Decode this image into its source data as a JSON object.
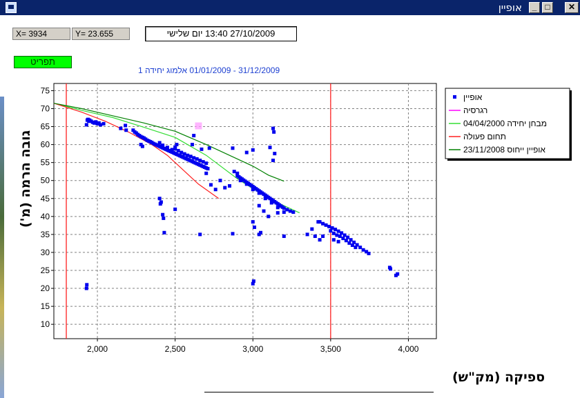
{
  "window": {
    "title": "אופיין",
    "minimize": "_",
    "maximize": "□",
    "close": "✕"
  },
  "readout": {
    "x_text": "X= 3934",
    "y_text": "Y= 23.655"
  },
  "datetime": "27/10/2009 13:40 יום שלישי",
  "menu_button": "תפריט",
  "subtitle": "31/12/2009 - 01/01/2009  אלמוג יחידה 1",
  "icons": {
    "app": "app-icon"
  },
  "chart_data": {
    "type": "scatter",
    "xlabel": "ספיקה (מק\"ש)",
    "ylabel": "גובה הרמה (מ')",
    "xlim": [
      1720,
      4180
    ],
    "ylim": [
      6,
      77
    ],
    "xticks": [
      2000,
      2500,
      3000,
      3500,
      4000
    ],
    "xtick_labels": [
      "2,000",
      "2,500",
      "3,000",
      "3,500",
      "4,000"
    ],
    "yticks": [
      10,
      15,
      20,
      25,
      30,
      35,
      40,
      45,
      50,
      55,
      60,
      65,
      70,
      75
    ],
    "grid": true,
    "legend_position": "right",
    "vertical_lines": [
      1800,
      3500
    ],
    "series": [
      {
        "name": "אופיין",
        "kind": "scatter",
        "color": "#0000ee",
        "points": [
          [
            1930,
            65.5
          ],
          [
            1935,
            66.8
          ],
          [
            1940,
            67
          ],
          [
            1945,
            66.5
          ],
          [
            1950,
            66.8
          ],
          [
            1960,
            66.5
          ],
          [
            1970,
            66.2
          ],
          [
            1980,
            66
          ],
          [
            1990,
            66.3
          ],
          [
            2000,
            65.8
          ],
          [
            2010,
            66
          ],
          [
            2020,
            65.5
          ],
          [
            2040,
            65.8
          ],
          [
            1930,
            20
          ],
          [
            1932,
            21
          ],
          [
            2150,
            64.5
          ],
          [
            2180,
            65.3
          ],
          [
            2185,
            64
          ],
          [
            2230,
            64
          ],
          [
            2240,
            63.5
          ],
          [
            2250,
            63.2
          ],
          [
            2260,
            62.8
          ],
          [
            2270,
            62.5
          ],
          [
            2280,
            62.2
          ],
          [
            2290,
            62
          ],
          [
            2300,
            61.8
          ],
          [
            2310,
            61.5
          ],
          [
            2320,
            61.2
          ],
          [
            2330,
            61
          ],
          [
            2340,
            60.8
          ],
          [
            2350,
            60.6
          ],
          [
            2360,
            60.3
          ],
          [
            2370,
            60.1
          ],
          [
            2380,
            59.9
          ],
          [
            2390,
            59.7
          ],
          [
            2400,
            59.5
          ],
          [
            2410,
            59.3
          ],
          [
            2420,
            59.1
          ],
          [
            2430,
            58.9
          ],
          [
            2440,
            58.7
          ],
          [
            2450,
            58.5
          ],
          [
            2460,
            58.3
          ],
          [
            2470,
            58.1
          ],
          [
            2480,
            57.9
          ],
          [
            2490,
            57.7
          ],
          [
            2500,
            57.5
          ],
          [
            2510,
            57.3
          ],
          [
            2520,
            57.1
          ],
          [
            2530,
            56.9
          ],
          [
            2540,
            56.7
          ],
          [
            2550,
            56.5
          ],
          [
            2560,
            56.3
          ],
          [
            2570,
            56.1
          ],
          [
            2580,
            55.9
          ],
          [
            2590,
            55.7
          ],
          [
            2600,
            55.5
          ],
          [
            2610,
            55.3
          ],
          [
            2620,
            55.1
          ],
          [
            2630,
            54.9
          ],
          [
            2640,
            54.7
          ],
          [
            2650,
            54.5
          ],
          [
            2660,
            54.3
          ],
          [
            2670,
            54.1
          ],
          [
            2680,
            53.9
          ],
          [
            2690,
            53.7
          ],
          [
            2700,
            53.5
          ],
          [
            2710,
            53.3
          ],
          [
            2400,
            60.5
          ],
          [
            2420,
            59.8
          ],
          [
            2450,
            59.2
          ],
          [
            2480,
            58.6
          ],
          [
            2500,
            58.8
          ],
          [
            2520,
            58.3
          ],
          [
            2540,
            57.8
          ],
          [
            2560,
            57.4
          ],
          [
            2580,
            57
          ],
          [
            2600,
            56.7
          ],
          [
            2620,
            56.3
          ],
          [
            2640,
            56
          ],
          [
            2660,
            55.6
          ],
          [
            2680,
            55.2
          ],
          [
            2700,
            54.8
          ],
          [
            2280,
            60
          ],
          [
            2290,
            59.5
          ],
          [
            2500,
            59.3
          ],
          [
            2510,
            60
          ],
          [
            2610,
            60
          ],
          [
            2670,
            58.7
          ],
          [
            2720,
            59
          ],
          [
            2620,
            62.5
          ],
          [
            2870,
            59
          ],
          [
            2960,
            57.8
          ],
          [
            3110,
            59.2
          ],
          [
            3130,
            64.5
          ],
          [
            3135,
            63.5
          ],
          [
            3130,
            55.6
          ],
          [
            3140,
            57.5
          ],
          [
            3000,
            58.5
          ],
          [
            2400,
            45
          ],
          [
            2405,
            43.5
          ],
          [
            2410,
            44
          ],
          [
            2420,
            40.5
          ],
          [
            2425,
            39.5
          ],
          [
            2430,
            35.5
          ],
          [
            2500,
            42
          ],
          [
            2660,
            35
          ],
          [
            2870,
            35.2
          ],
          [
            2700,
            52
          ],
          [
            2730,
            48.8
          ],
          [
            2760,
            47.5
          ],
          [
            2790,
            50
          ],
          [
            2820,
            48
          ],
          [
            2850,
            48.5
          ],
          [
            2880,
            52.5
          ],
          [
            2900,
            52
          ],
          [
            2900,
            51.3
          ],
          [
            2910,
            51
          ],
          [
            2920,
            50.7
          ],
          [
            2930,
            50.4
          ],
          [
            2940,
            50.1
          ],
          [
            2950,
            49.8
          ],
          [
            2960,
            49.5
          ],
          [
            2970,
            49.2
          ],
          [
            2980,
            48.9
          ],
          [
            2990,
            48.6
          ],
          [
            3000,
            48.3
          ],
          [
            3010,
            48
          ],
          [
            3020,
            47.7
          ],
          [
            3030,
            47.4
          ],
          [
            3040,
            47.1
          ],
          [
            3050,
            46.8
          ],
          [
            3060,
            46.5
          ],
          [
            3070,
            46.2
          ],
          [
            3080,
            45.9
          ],
          [
            3090,
            45.6
          ],
          [
            3100,
            45.3
          ],
          [
            3110,
            45
          ],
          [
            3120,
            44.7
          ],
          [
            3130,
            44.4
          ],
          [
            3140,
            44.1
          ],
          [
            3150,
            43.8
          ],
          [
            3160,
            43.5
          ],
          [
            3170,
            43.2
          ],
          [
            3180,
            42.9
          ],
          [
            3190,
            42.6
          ],
          [
            3200,
            42.3
          ],
          [
            3220,
            41.9
          ],
          [
            3240,
            41.5
          ],
          [
            3260,
            41.2
          ],
          [
            2920,
            50
          ],
          [
            2960,
            49
          ],
          [
            3000,
            47.5
          ],
          [
            3040,
            46.5
          ],
          [
            3080,
            45
          ],
          [
            3120,
            43.8
          ],
          [
            3160,
            42.5
          ],
          [
            3200,
            41.2
          ],
          [
            3000,
            38.5
          ],
          [
            3010,
            37
          ],
          [
            3070,
            41.5
          ],
          [
            3040,
            43
          ],
          [
            3100,
            40
          ],
          [
            3050,
            35.5
          ],
          [
            3000,
            21.3
          ],
          [
            3005,
            22
          ],
          [
            3200,
            34.5
          ],
          [
            3160,
            41
          ],
          [
            3040,
            35
          ],
          [
            3350,
            35
          ],
          [
            3380,
            36.5
          ],
          [
            3400,
            34.5
          ],
          [
            3420,
            38.5
          ],
          [
            3430,
            33.5
          ],
          [
            3450,
            34.5
          ],
          [
            3430,
            38.5
          ],
          [
            3450,
            38
          ],
          [
            3470,
            37.6
          ],
          [
            3490,
            37.2
          ],
          [
            3510,
            36.8
          ],
          [
            3530,
            36.4
          ],
          [
            3550,
            35.9
          ],
          [
            3570,
            35.4
          ],
          [
            3590,
            34.8
          ],
          [
            3610,
            34.2
          ],
          [
            3630,
            33.5
          ],
          [
            3650,
            32.8
          ],
          [
            3670,
            32.1
          ],
          [
            3690,
            31.4
          ],
          [
            3710,
            30.7
          ],
          [
            3730,
            30.2
          ],
          [
            3745,
            29.7
          ],
          [
            3500,
            36
          ],
          [
            3520,
            35.3
          ],
          [
            3540,
            34.8
          ],
          [
            3560,
            34.5
          ],
          [
            3580,
            33.9
          ],
          [
            3600,
            33.3
          ],
          [
            3620,
            32.6
          ],
          [
            3640,
            32
          ],
          [
            3660,
            31.4
          ],
          [
            3520,
            33.5
          ],
          [
            3550,
            33
          ],
          [
            3880,
            25.8
          ],
          [
            3885,
            25.4
          ],
          [
            3920,
            23.6
          ],
          [
            3930,
            24
          ]
        ]
      },
      {
        "name": "רגרסיה",
        "kind": "marker",
        "color": "#ff00ff",
        "points": [
          [
            2650,
            65.2
          ]
        ]
      },
      {
        "name": "מבחן יחידה 04/04/2000",
        "kind": "line",
        "color": "#33dd33",
        "points": [
          [
            1720,
            71.5
          ],
          [
            1900,
            69.5
          ],
          [
            2100,
            67.5
          ],
          [
            2300,
            64.8
          ],
          [
            2500,
            62
          ],
          [
            2700,
            57
          ],
          [
            2900,
            50.5
          ],
          [
            3100,
            45
          ],
          [
            3300,
            41
          ]
        ]
      },
      {
        "name": "תחום פעולה",
        "kind": "line",
        "color": "#ff2020",
        "points": [
          [
            1720,
            71.5
          ],
          [
            1900,
            69
          ],
          [
            2050,
            66.5
          ],
          [
            2200,
            63.5
          ],
          [
            2350,
            60
          ],
          [
            2450,
            57
          ],
          [
            2550,
            53
          ],
          [
            2650,
            49
          ],
          [
            2780,
            45
          ]
        ]
      },
      {
        "name": "אופיין ייחוס 23/11/2008",
        "kind": "line",
        "color": "#008000",
        "points": [
          [
            1720,
            71.5
          ],
          [
            1900,
            70
          ],
          [
            2100,
            68
          ],
          [
            2300,
            66
          ],
          [
            2500,
            63.7
          ],
          [
            2700,
            60
          ],
          [
            2900,
            56
          ],
          [
            3000,
            54
          ],
          [
            3100,
            51.5
          ],
          [
            3200,
            49.8
          ]
        ]
      }
    ]
  }
}
